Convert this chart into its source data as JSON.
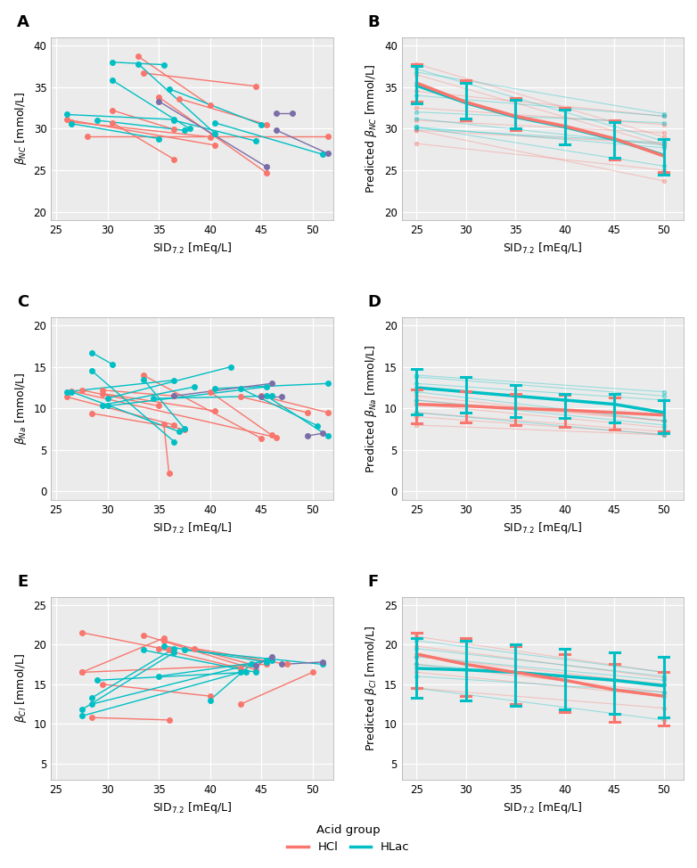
{
  "color_red": "#F8766D",
  "color_blue": "#00BFC4",
  "color_red_light": "#F8766D",
  "color_blue_light": "#00BFC4",
  "color_purple": "#7B6EA8",
  "panel_bg": "#EBEBEB",
  "panelA": {
    "ylim": [
      19,
      41
    ],
    "xlim": [
      24.5,
      52
    ],
    "yticks": [
      20,
      25,
      30,
      35,
      40
    ],
    "xticks": [
      25,
      30,
      35,
      40,
      45,
      50
    ],
    "red_pairs": [
      [
        [
          26.0,
          31.1
        ],
        [
          40.5,
          28.0
        ]
      ],
      [
        [
          26.5,
          30.8
        ],
        [
          40.0,
          29.0
        ]
      ],
      [
        [
          28.0,
          29.1
        ],
        [
          51.5,
          29.1
        ]
      ],
      [
        [
          30.5,
          32.2
        ],
        [
          36.5,
          29.9
        ]
      ],
      [
        [
          30.5,
          30.7
        ],
        [
          36.5,
          26.3
        ]
      ],
      [
        [
          33.0,
          38.7
        ],
        [
          40.0,
          32.8
        ]
      ],
      [
        [
          33.5,
          36.7
        ],
        [
          44.5,
          35.1
        ]
      ],
      [
        [
          35.0,
          33.8
        ],
        [
          45.5,
          24.7
        ]
      ],
      [
        [
          37.0,
          33.6
        ],
        [
          45.5,
          30.5
        ]
      ]
    ],
    "blue_pairs": [
      [
        [
          26.0,
          31.7
        ],
        [
          36.5,
          31.1
        ]
      ],
      [
        [
          26.5,
          30.6
        ],
        [
          35.0,
          28.8
        ]
      ],
      [
        [
          29.0,
          31.0
        ],
        [
          37.5,
          29.8
        ]
      ],
      [
        [
          30.5,
          35.8
        ],
        [
          38.0,
          30.0
        ]
      ],
      [
        [
          30.5,
          38.0
        ],
        [
          35.5,
          37.7
        ]
      ],
      [
        [
          33.0,
          37.8
        ],
        [
          40.5,
          29.4
        ]
      ],
      [
        [
          36.0,
          34.8
        ],
        [
          45.0,
          30.5
        ]
      ],
      [
        [
          36.5,
          31.0
        ],
        [
          44.5,
          28.5
        ]
      ],
      [
        [
          40.5,
          30.7
        ],
        [
          51.0,
          26.9
        ]
      ]
    ],
    "purple_pairs": [
      [
        [
          35.0,
          33.3
        ],
        [
          45.5,
          25.4
        ]
      ],
      [
        [
          46.5,
          29.8
        ],
        [
          51.5,
          27.0
        ]
      ],
      [
        [
          46.5,
          31.9
        ],
        [
          48.0,
          31.9
        ]
      ]
    ]
  },
  "panelB": {
    "ylim": [
      19,
      41
    ],
    "xlim": [
      23.5,
      52
    ],
    "yticks": [
      20,
      25,
      30,
      35,
      40
    ],
    "xticks": [
      25,
      30,
      35,
      40,
      45,
      50
    ],
    "red_mean": [
      35.5,
      33.2,
      31.5,
      30.3,
      28.8,
      26.7
    ],
    "red_lower": [
      33.3,
      31.0,
      29.8,
      28.1,
      26.3,
      24.8
    ],
    "red_upper": [
      37.8,
      35.8,
      33.7,
      32.5,
      31.0,
      28.8
    ],
    "blue_mean": [
      35.2,
      33.1,
      31.4,
      30.2,
      28.7,
      26.8
    ],
    "blue_lower": [
      33.0,
      31.2,
      30.0,
      28.1,
      26.5,
      24.5
    ],
    "blue_upper": [
      37.6,
      35.5,
      33.5,
      32.3,
      30.8,
      28.7
    ],
    "x_err": [
      25,
      30,
      35,
      40,
      45,
      50
    ],
    "red_lines": [
      [
        [
          25,
          50
        ],
        [
          37.8,
          29.0
        ]
      ],
      [
        [
          25,
          50
        ],
        [
          36.5,
          28.0
        ]
      ],
      [
        [
          25,
          50
        ],
        [
          34.5,
          31.5
        ]
      ],
      [
        [
          25,
          50
        ],
        [
          32.5,
          30.5
        ]
      ],
      [
        [
          25,
          50
        ],
        [
          31.0,
          29.5
        ]
      ],
      [
        [
          25,
          50
        ],
        [
          29.8,
          28.2
        ]
      ],
      [
        [
          25,
          50
        ],
        [
          28.2,
          25.0
        ]
      ],
      [
        [
          25,
          50
        ],
        [
          29.8,
          23.7
        ]
      ]
    ],
    "blue_lines": [
      [
        [
          25,
          50
        ],
        [
          37.2,
          28.5
        ]
      ],
      [
        [
          25,
          50
        ],
        [
          36.8,
          31.8
        ]
      ],
      [
        [
          25,
          50
        ],
        [
          34.0,
          31.5
        ]
      ],
      [
        [
          25,
          50
        ],
        [
          32.0,
          30.7
        ]
      ],
      [
        [
          25,
          50
        ],
        [
          31.2,
          28.0
        ]
      ],
      [
        [
          25,
          50
        ],
        [
          30.2,
          27.7
        ]
      ],
      [
        [
          25,
          50
        ],
        [
          30.2,
          25.5
        ]
      ],
      [
        [
          25,
          50
        ],
        [
          30.0,
          28.3
        ]
      ]
    ]
  },
  "panelC": {
    "ylim": [
      -1,
      21
    ],
    "xlim": [
      24.5,
      52
    ],
    "yticks": [
      0,
      5,
      10,
      15,
      20
    ],
    "xticks": [
      25,
      30,
      35,
      40,
      45,
      50
    ],
    "red_pairs": [
      [
        [
          26.0,
          11.4
        ],
        [
          36.5,
          8.0
        ]
      ],
      [
        [
          26.5,
          12.1
        ],
        [
          46.5,
          6.5
        ]
      ],
      [
        [
          27.5,
          12.2
        ],
        [
          35.0,
          10.3
        ]
      ],
      [
        [
          28.5,
          9.4
        ],
        [
          37.5,
          7.5
        ]
      ],
      [
        [
          29.5,
          12.2
        ],
        [
          36.5,
          11.5
        ]
      ],
      [
        [
          29.5,
          11.8
        ],
        [
          40.5,
          9.7
        ]
      ],
      [
        [
          33.5,
          14.0
        ],
        [
          45.0,
          6.4
        ]
      ],
      [
        [
          35.5,
          8.1
        ],
        [
          36.0,
          2.2
        ]
      ],
      [
        [
          40.0,
          12.0
        ],
        [
          46.0,
          6.8
        ]
      ],
      [
        [
          43.0,
          11.4
        ],
        [
          49.5,
          9.5
        ]
      ],
      [
        [
          45.0,
          11.5
        ],
        [
          51.5,
          9.5
        ]
      ]
    ],
    "blue_pairs": [
      [
        [
          26.0,
          12.0
        ],
        [
          36.5,
          13.4
        ]
      ],
      [
        [
          26.5,
          12.0
        ],
        [
          37.0,
          7.2
        ]
      ],
      [
        [
          28.5,
          14.5
        ],
        [
          36.5,
          6.0
        ]
      ],
      [
        [
          28.5,
          16.7
        ],
        [
          30.5,
          15.3
        ]
      ],
      [
        [
          29.5,
          10.4
        ],
        [
          38.5,
          12.6
        ]
      ],
      [
        [
          30.0,
          11.2
        ],
        [
          42.0,
          15.0
        ]
      ],
      [
        [
          30.0,
          10.3
        ],
        [
          45.5,
          12.6
        ]
      ],
      [
        [
          33.5,
          13.5
        ],
        [
          37.5,
          7.6
        ]
      ],
      [
        [
          34.5,
          11.2
        ],
        [
          46.0,
          11.5
        ]
      ],
      [
        [
          40.5,
          12.4
        ],
        [
          51.5,
          13.0
        ]
      ],
      [
        [
          43.0,
          12.4
        ],
        [
          50.5,
          7.9
        ]
      ],
      [
        [
          45.5,
          11.5
        ],
        [
          51.5,
          6.7
        ]
      ]
    ],
    "purple_pairs": [
      [
        [
          36.5,
          11.5
        ],
        [
          46.0,
          13.0
        ]
      ],
      [
        [
          45.0,
          11.4
        ],
        [
          47.0,
          11.4
        ]
      ],
      [
        [
          49.5,
          6.7
        ],
        [
          51.0,
          7.0
        ]
      ]
    ]
  },
  "panelD": {
    "ylim": [
      -1,
      21
    ],
    "xlim": [
      23.5,
      52
    ],
    "yticks": [
      0,
      5,
      10,
      15,
      20
    ],
    "xticks": [
      25,
      30,
      35,
      40,
      45,
      50
    ],
    "red_mean": [
      10.5,
      10.3,
      10.0,
      9.8,
      9.5,
      9.2
    ],
    "red_lower": [
      8.2,
      8.3,
      8.0,
      7.8,
      7.5,
      7.2
    ],
    "red_upper": [
      12.3,
      12.1,
      11.8,
      11.6,
      11.3,
      11.0
    ],
    "blue_mean": [
      12.5,
      12.0,
      11.5,
      11.0,
      10.5,
      9.5
    ],
    "blue_lower": [
      9.3,
      9.5,
      9.0,
      8.8,
      8.3,
      7.0
    ],
    "blue_upper": [
      14.7,
      13.8,
      12.8,
      11.8,
      11.7,
      11.0
    ],
    "x_err": [
      25,
      30,
      35,
      40,
      45,
      50
    ],
    "red_lines": [
      [
        [
          25,
          50
        ],
        [
          11.5,
          8.5
        ]
      ],
      [
        [
          25,
          50
        ],
        [
          11.0,
          8.5
        ]
      ],
      [
        [
          25,
          50
        ],
        [
          10.5,
          7.7
        ]
      ],
      [
        [
          25,
          50
        ],
        [
          9.5,
          7.2
        ]
      ],
      [
        [
          25,
          50
        ],
        [
          9.0,
          6.9
        ]
      ],
      [
        [
          25,
          50
        ],
        [
          8.0,
          6.8
        ]
      ]
    ],
    "blue_lines": [
      [
        [
          25,
          50
        ],
        [
          14.0,
          12.0
        ]
      ],
      [
        [
          25,
          50
        ],
        [
          13.8,
          11.5
        ]
      ],
      [
        [
          25,
          50
        ],
        [
          13.0,
          11.0
        ]
      ],
      [
        [
          25,
          50
        ],
        [
          12.0,
          8.5
        ]
      ],
      [
        [
          25,
          50
        ],
        [
          11.0,
          8.0
        ]
      ],
      [
        [
          25,
          50
        ],
        [
          9.5,
          6.8
        ]
      ]
    ]
  },
  "panelE": {
    "ylim": [
      3,
      26
    ],
    "xlim": [
      24.5,
      52
    ],
    "yticks": [
      5,
      10,
      15,
      20,
      25
    ],
    "xticks": [
      25,
      30,
      35,
      40,
      45,
      50
    ],
    "red_pairs": [
      [
        [
          27.5,
          16.5
        ],
        [
          35.5,
          20.8
        ]
      ],
      [
        [
          27.5,
          21.5
        ],
        [
          36.0,
          19.3
        ]
      ],
      [
        [
          27.5,
          16.5
        ],
        [
          45.5,
          17.5
        ]
      ],
      [
        [
          28.5,
          10.8
        ],
        [
          36.0,
          10.5
        ]
      ],
      [
        [
          29.5,
          15.0
        ],
        [
          40.0,
          13.5
        ]
      ],
      [
        [
          33.5,
          21.2
        ],
        [
          44.5,
          16.8
        ]
      ],
      [
        [
          35.0,
          19.5
        ],
        [
          43.0,
          17.0
        ]
      ],
      [
        [
          35.5,
          20.5
        ],
        [
          44.0,
          17.5
        ]
      ],
      [
        [
          38.5,
          19.5
        ],
        [
          47.5,
          17.5
        ]
      ],
      [
        [
          43.0,
          12.5
        ],
        [
          50.0,
          16.5
        ]
      ]
    ],
    "blue_pairs": [
      [
        [
          27.5,
          11.0
        ],
        [
          43.0,
          16.5
        ]
      ],
      [
        [
          27.5,
          11.8
        ],
        [
          36.5,
          19.0
        ]
      ],
      [
        [
          28.5,
          12.5
        ],
        [
          45.5,
          18.0
        ]
      ],
      [
        [
          28.5,
          13.3
        ],
        [
          36.5,
          19.5
        ]
      ],
      [
        [
          29.0,
          15.5
        ],
        [
          43.5,
          16.5
        ]
      ],
      [
        [
          33.5,
          19.3
        ],
        [
          44.5,
          16.5
        ]
      ],
      [
        [
          35.0,
          16.0
        ],
        [
          46.0,
          18.0
        ]
      ],
      [
        [
          35.5,
          19.8
        ],
        [
          45.5,
          17.8
        ]
      ],
      [
        [
          37.5,
          19.3
        ],
        [
          51.0,
          17.5
        ]
      ],
      [
        [
          40.0,
          13.0
        ],
        [
          44.0,
          17.5
        ]
      ]
    ],
    "purple_pairs": [
      [
        [
          44.5,
          17.3
        ],
        [
          46.0,
          18.5
        ]
      ],
      [
        [
          47.0,
          17.5
        ],
        [
          51.0,
          17.8
        ]
      ]
    ]
  },
  "panelF": {
    "ylim": [
      3,
      26
    ],
    "xlim": [
      23.5,
      52
    ],
    "yticks": [
      5,
      10,
      15,
      20,
      25
    ],
    "xticks": [
      25,
      30,
      35,
      40,
      45,
      50
    ],
    "red_mean": [
      18.8,
      17.5,
      16.5,
      15.5,
      14.3,
      13.5
    ],
    "red_lower": [
      14.5,
      13.5,
      12.5,
      11.5,
      10.3,
      9.8
    ],
    "red_upper": [
      21.5,
      20.8,
      19.8,
      18.8,
      17.5,
      16.5
    ],
    "blue_mean": [
      17.0,
      16.8,
      16.5,
      16.0,
      15.5,
      14.8
    ],
    "blue_lower": [
      13.3,
      13.0,
      12.3,
      11.8,
      11.3,
      10.8
    ],
    "blue_upper": [
      20.8,
      20.5,
      20.0,
      19.5,
      19.0,
      18.5
    ],
    "x_err": [
      25,
      30,
      35,
      40,
      45,
      50
    ],
    "red_lines": [
      [
        [
          25,
          50
        ],
        [
          21.0,
          16.5
        ]
      ],
      [
        [
          25,
          50
        ],
        [
          19.8,
          15.8
        ]
      ],
      [
        [
          25,
          50
        ],
        [
          18.5,
          15.0
        ]
      ],
      [
        [
          25,
          50
        ],
        [
          17.5,
          14.0
        ]
      ],
      [
        [
          25,
          50
        ],
        [
          16.5,
          13.5
        ]
      ],
      [
        [
          25,
          50
        ],
        [
          14.5,
          12.0
        ]
      ]
    ],
    "blue_lines": [
      [
        [
          25,
          50
        ],
        [
          20.5,
          16.5
        ]
      ],
      [
        [
          25,
          50
        ],
        [
          19.5,
          16.0
        ]
      ],
      [
        [
          25,
          50
        ],
        [
          18.5,
          15.5
        ]
      ],
      [
        [
          25,
          50
        ],
        [
          17.5,
          15.0
        ]
      ],
      [
        [
          25,
          50
        ],
        [
          16.0,
          14.0
        ]
      ],
      [
        [
          25,
          50
        ],
        [
          14.5,
          10.5
        ]
      ]
    ]
  }
}
